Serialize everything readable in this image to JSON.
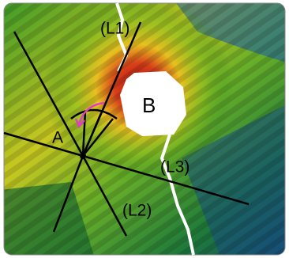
{
  "labels": {
    "l1": "(L1)",
    "b": "B",
    "a": "A",
    "l3": "(L3)",
    "l2": "(L2)"
  }
}
